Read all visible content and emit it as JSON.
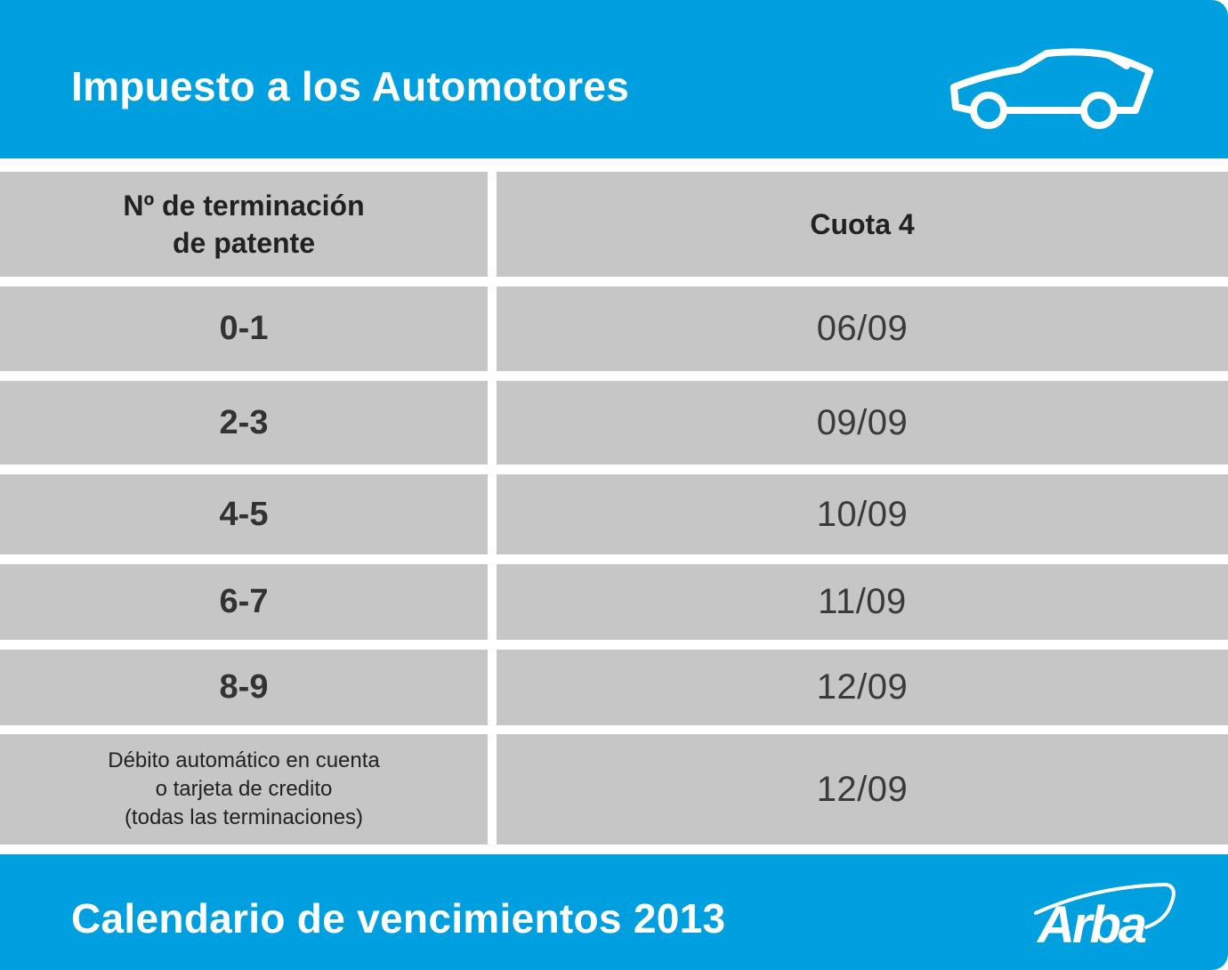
{
  "header": {
    "title": "Impuesto a los Automotores",
    "icon": "car-icon"
  },
  "table": {
    "columns": [
      "Nº de terminación\nde patente",
      "Cuota 4"
    ],
    "rows": [
      {
        "terminacion": "0-1",
        "fecha": "06/09"
      },
      {
        "terminacion": "2-3",
        "fecha": "09/09"
      },
      {
        "terminacion": "4-5",
        "fecha": "10/09"
      },
      {
        "terminacion": "6-7",
        "fecha": "11/09"
      },
      {
        "terminacion": "8-9",
        "fecha": "12/09"
      },
      {
        "terminacion": "Débito automático en cuenta\no tarjeta de credito\n(todas las terminaciones)",
        "fecha": "12/09"
      }
    ]
  },
  "footer": {
    "title": "Calendario de vencimientos 2013",
    "logo_text": "Arba"
  },
  "colors": {
    "brand_blue": "#009fe0",
    "cell_gray": "#c6c6c6",
    "text_dark": "#333333"
  }
}
